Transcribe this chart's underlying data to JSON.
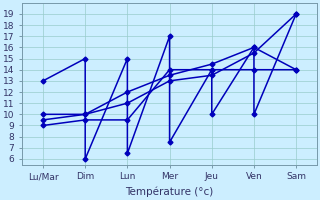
{
  "x_labels": [
    "Lu/Mar",
    "Dim",
    "Lun",
    "Mer",
    "Jeu",
    "Ven",
    "Sam"
  ],
  "x_positions": [
    0,
    1,
    2,
    3,
    4,
    5,
    6
  ],
  "series": [
    {
      "x": [
        0,
        1,
        1,
        2,
        2,
        3,
        3,
        4,
        4,
        5,
        5,
        6
      ],
      "y": [
        13,
        15,
        6,
        15,
        6.5,
        17,
        7.5,
        14,
        10,
        16,
        10,
        19
      ],
      "color": "#0000bb"
    },
    {
      "x": [
        0,
        1,
        2,
        3,
        4,
        5,
        6
      ],
      "y": [
        9,
        9.5,
        9.5,
        14,
        14,
        14,
        14
      ],
      "color": "#0000bb"
    },
    {
      "x": [
        0,
        1,
        2,
        3,
        4,
        5,
        6
      ],
      "y": [
        9.5,
        10,
        11,
        13,
        13.5,
        15.5,
        19
      ],
      "color": "#0000bb"
    },
    {
      "x": [
        0,
        1,
        2,
        3,
        4,
        5,
        6
      ],
      "y": [
        10,
        10,
        12,
        13.5,
        14.5,
        16,
        14
      ],
      "color": "#0000bb"
    }
  ],
  "ylim": [
    5.5,
    20
  ],
  "yticks": [
    6,
    7,
    8,
    9,
    10,
    11,
    12,
    13,
    14,
    15,
    16,
    17,
    18,
    19
  ],
  "xlabel": "Température (°c)",
  "background_color": "#cceeff",
  "grid_color": "#99cccc",
  "tick_fontsize": 6.5,
  "label_fontsize": 7.5,
  "linewidth": 1.1,
  "markersize": 2.5
}
